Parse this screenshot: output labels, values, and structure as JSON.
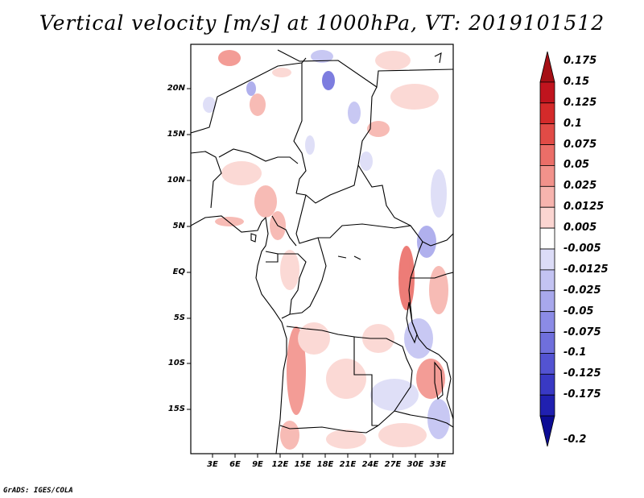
{
  "title": "Vertical velocity [m/s] at 1000hPa, VT: 2019101512",
  "map": {
    "lat_labels": [
      "20N",
      "15N",
      "10N",
      "5N",
      "EQ",
      "5S",
      "10S",
      "15S"
    ],
    "lon_labels": [
      "3E",
      "6E",
      "9E",
      "12E",
      "15E",
      "18E",
      "21E",
      "24E",
      "27E",
      "30E",
      "33E"
    ]
  },
  "colorbar": {
    "levels": [
      "0.175",
      "0.15",
      "0.125",
      "0.1",
      "0.075",
      "0.05",
      "0.025",
      "0.0125",
      "0.005",
      "-0.005",
      "-0.0125",
      "-0.025",
      "-0.05",
      "-0.075",
      "-0.1",
      "-0.125",
      "-0.175",
      "-0.2"
    ],
    "colors": [
      "#a50f15",
      "#c0141e",
      "#d42a2a",
      "#e14b46",
      "#eb6e68",
      "#f2928b",
      "#f7b4ae",
      "#fbd5d1",
      "#ffffff",
      "#dcdcf7",
      "#c3c3f2",
      "#a8a8ec",
      "#8b8be6",
      "#6f6fdc",
      "#5353d2",
      "#3939c4",
      "#2020b0",
      "#0c0c94"
    ]
  },
  "footer": "GrADS: IGES/COLA"
}
